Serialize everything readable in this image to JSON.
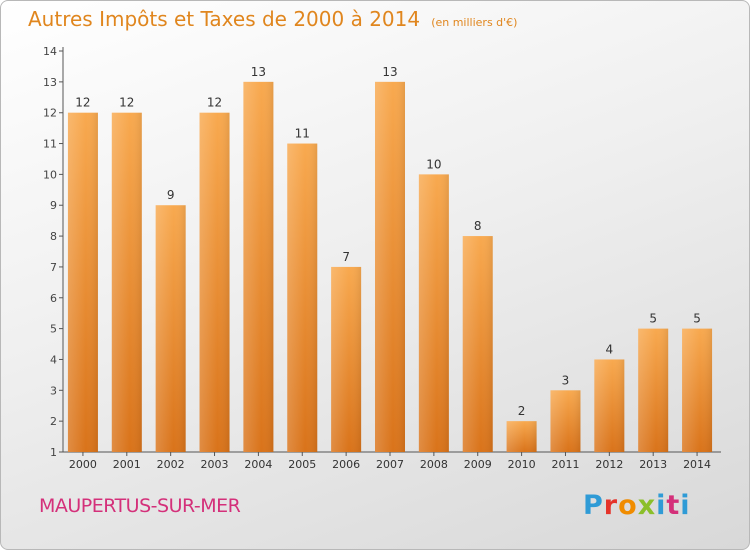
{
  "header": {
    "title": "Autres Impôts et Taxes de 2000 à 2014",
    "subtitle": "(en milliers d'€)"
  },
  "footer": {
    "commune": "MAUPERTUS-SUR-MER",
    "logo_letters": [
      "P",
      "r",
      "o",
      "x",
      "i",
      "t",
      "i"
    ]
  },
  "colors": {
    "title": "#e0861e",
    "commune": "#d4307a",
    "bar_top": "#f8a94f",
    "bar_bottom": "#d9731a"
  },
  "chart_data": {
    "type": "bar",
    "title": "Autres Impôts et Taxes de 2000 à 2014",
    "subtitle": "(en milliers d'€)",
    "categories": [
      "2000",
      "2001",
      "2002",
      "2003",
      "2004",
      "2005",
      "2006",
      "2007",
      "2008",
      "2009",
      "2010",
      "2011",
      "2012",
      "2013",
      "2014"
    ],
    "values": [
      12,
      12,
      9,
      12,
      13,
      11,
      7,
      13,
      10,
      8,
      2,
      3,
      4,
      5,
      5
    ],
    "y_ticks": [
      1,
      2,
      3,
      4,
      5,
      6,
      7,
      8,
      9,
      10,
      11,
      12,
      13,
      14
    ],
    "ylim": [
      1,
      14
    ],
    "grid": false,
    "data_labels": true
  }
}
